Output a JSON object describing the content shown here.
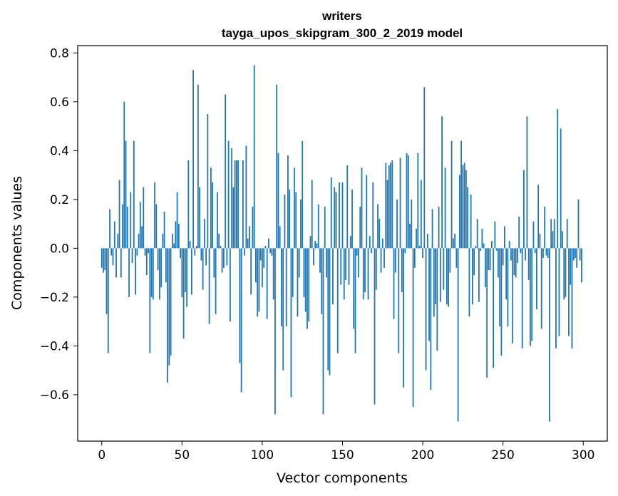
{
  "chart_data": {
    "type": "bar",
    "title_lines": [
      "writers",
      "tayga_upos_skipgram_300_2_2019 model"
    ],
    "xlabel": "Vector components",
    "ylabel": "Components values",
    "xlim": [
      -15,
      315
    ],
    "ylim": [
      -0.79,
      0.83
    ],
    "xticks": [
      0,
      50,
      100,
      150,
      200,
      250,
      300
    ],
    "yticks": [
      -0.6,
      -0.4,
      -0.2,
      0.0,
      0.2,
      0.4,
      0.6,
      0.8
    ],
    "ytick_labels": [
      "−0.6",
      "−0.4",
      "−0.2",
      "0.0",
      "0.2",
      "0.4",
      "0.6",
      "0.8"
    ],
    "grid": false,
    "bar_color": "#1f77b4",
    "values": [
      -0.08,
      -0.1,
      -0.09,
      -0.27,
      -0.43,
      0.16,
      -0.03,
      -0.07,
      0.11,
      -0.12,
      0.06,
      0.28,
      -0.12,
      0.18,
      0.6,
      0.44,
      0.17,
      -0.2,
      0.23,
      -0.06,
      0.44,
      -0.19,
      -0.03,
      0.06,
      0.19,
      0.09,
      0.25,
      -0.03,
      -0.11,
      -0.02,
      -0.43,
      -0.2,
      -0.21,
      0.27,
      0.18,
      -0.09,
      -0.21,
      -0.16,
      0.06,
      0.15,
      -0.14,
      -0.55,
      -0.48,
      -0.44,
      0.06,
      0.02,
      0.11,
      0.23,
      0.1,
      -0.04,
      -0.2,
      -0.37,
      -0.18,
      -0.24,
      0.36,
      0.03,
      -0.19,
      0.73,
      -0.03,
      0.01,
      0.67,
      0.25,
      -0.05,
      -0.17,
      0.12,
      -0.07,
      0.55,
      -0.31,
      0.33,
      0.27,
      -0.12,
      -0.27,
      0.23,
      0.06,
      0.01,
      -0.1,
      -0.08,
      0.63,
      -0.07,
      0.44,
      -0.3,
      0.41,
      0.25,
      0.36,
      0.36,
      0.36,
      -0.47,
      -0.59,
      0.36,
      -0.03,
      0.42,
      0.04,
      0.09,
      -0.19,
      0.17,
      0.75,
      -0.14,
      -0.28,
      -0.26,
      -0.05,
      -0.16,
      -0.08,
      0.01,
      -0.29,
      0.04,
      -0.02,
      -0.03,
      -0.21,
      -0.68,
      0.67,
      0.39,
      0.09,
      -0.32,
      -0.5,
      0.22,
      -0.32,
      0.38,
      0.24,
      -0.61,
      -0.2,
      0.33,
      0.23,
      -0.28,
      -0.12,
      0.2,
      0.44,
      -0.2,
      -0.26,
      -0.33,
      -0.3,
      0.05,
      0.28,
      -0.07,
      0.03,
      0.02,
      0.18,
      -0.1,
      -0.27,
      -0.68,
      0.17,
      -0.12,
      -0.5,
      -0.52,
      0.29,
      -0.23,
      0.25,
      0.23,
      -0.43,
      0.27,
      -0.15,
      0.27,
      -0.21,
      -0.13,
      0.34,
      -0.15,
      0.05,
      0.24,
      -0.33,
      -0.43,
      -0.03,
      -0.12,
      0.17,
      0.33,
      -0.21,
      -0.18,
      0.3,
      -0.21,
      0.05,
      -0.02,
      0.27,
      -0.64,
      -0.17,
      0.18,
      0.12,
      -0.1,
      0.04,
      -0.08,
      0.35,
      0.28,
      0.34,
      0.35,
      0.36,
      -0.29,
      -0.1,
      0.2,
      -0.43,
      0.37,
      -0.18,
      -0.57,
      -0.02,
      0.39,
      0.38,
      0.1,
      0.2,
      -0.65,
      -0.08,
      0.08,
      0.39,
      0.01,
      0.28,
      -0.04,
      0.66,
      -0.5,
      0.06,
      -0.38,
      -0.58,
      0.16,
      -0.28,
      -0.23,
      -0.42,
      0.17,
      -0.22,
      0.54,
      -0.17,
      0.33,
      -0.23,
      -0.24,
      -0.1,
      0.44,
      0.04,
      0.06,
      -0.08,
      -0.71,
      0.3,
      0.44,
      0.34,
      0.35,
      0.32,
      0.25,
      -0.28,
      0.22,
      -0.23,
      -0.11,
      0.01,
      0.12,
      -0.22,
      -0.01,
      0.08,
      0.02,
      -0.16,
      -0.53,
      -0.09,
      -0.09,
      0.03,
      -0.49,
      0.11,
      -0.01,
      -0.12,
      -0.32,
      -0.44,
      -0.07,
      0.09,
      -0.21,
      -0.32,
      0.03,
      -0.05,
      -0.39,
      -0.11,
      -0.12,
      -0.06,
      0.13,
      -0.02,
      -0.41,
      0.32,
      -0.05,
      0.54,
      -0.13,
      -0.4,
      -0.38,
      0.11,
      -0.02,
      -0.25,
      0.26,
      0.06,
      -0.33,
      -0.04,
      0.17,
      -0.03,
      -0.04,
      -0.71,
      0.12,
      0.07,
      0.12,
      -0.41,
      0.57,
      -0.36,
      0.49,
      0.07,
      -0.21,
      -0.2,
      0.12,
      -0.36,
      -0.15,
      -0.41,
      -0.05,
      -0.04,
      -0.08,
      0.2,
      -0.05,
      -0.14
    ]
  }
}
